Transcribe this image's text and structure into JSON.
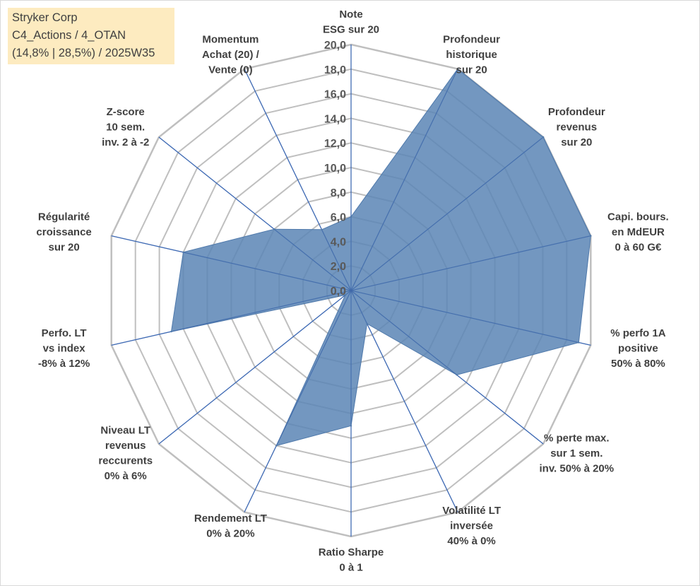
{
  "title_box": {
    "line1": "Stryker Corp",
    "line2": "C4_Actions / 4_OTAN",
    "line3": "(14,8% | 28,5%) / 2025W35"
  },
  "chart_data": {
    "type": "radar",
    "rlim": [
      0,
      20
    ],
    "tick_step": 2,
    "tick_labels": [
      "0,0",
      "2,0",
      "4,0",
      "6,0",
      "8,0",
      "10,0",
      "12,0",
      "14,0",
      "16,0",
      "18,0",
      "20,0"
    ],
    "grid": true,
    "legend": "none",
    "fill_color": "#5b85b5",
    "spoke_color": "#4472c4",
    "grid_color": "#bfbfbf",
    "axes": [
      {
        "label": [
          "Note",
          "ESG sur 20"
        ],
        "value": 6.0
      },
      {
        "label": [
          "Profondeur",
          "historique",
          "sur 20"
        ],
        "value": 20.0
      },
      {
        "label": [
          "Profondeur",
          "revenus",
          "sur 20"
        ],
        "value": 20.0
      },
      {
        "label": [
          "Capi. bours.",
          "en MdEUR",
          "0 à 60 G€"
        ],
        "value": 20.0
      },
      {
        "label": [
          "% perfo 1A",
          "positive",
          "50% à 80%"
        ],
        "value": 19.0
      },
      {
        "label": [
          "% perte max.",
          "sur 1 sem.",
          "inv. 50% à 20%"
        ],
        "value": 11.0
      },
      {
        "label": [
          "Volatilité LT",
          "inversée",
          "40% à 0%"
        ],
        "value": 3.0
      },
      {
        "label": [
          "Ratio Sharpe",
          "0 à 1"
        ],
        "value": 11.0
      },
      {
        "label": [
          "Rendement LT",
          "0% à 20%"
        ],
        "value": 14.0
      },
      {
        "label": [
          "Niveau LT",
          "revenus",
          "reccurents",
          "0% à 6%"
        ],
        "value": 0.6
      },
      {
        "label": [
          "Perfo. LT",
          "vs index",
          "-8% à 12%"
        ],
        "value": 15.0
      },
      {
        "label": [
          "Régularité",
          "croissance",
          "sur 20"
        ],
        "value": 14.0
      },
      {
        "label": [
          "Z-score",
          "10 sem.",
          "inv. 2 à -2"
        ],
        "value": 8.0
      },
      {
        "label": [
          "Momentum",
          "Achat (20) /",
          "Vente (0)"
        ],
        "value": 5.5
      }
    ]
  }
}
